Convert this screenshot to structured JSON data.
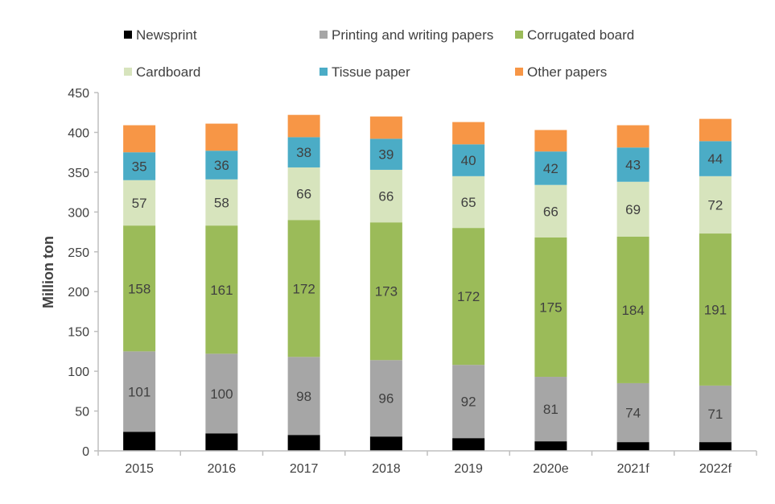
{
  "chart_data": {
    "type": "bar",
    "stacked": true,
    "title": "",
    "xlabel": "",
    "ylabel": "Million ton",
    "ylim": [
      0,
      450
    ],
    "yticks": [
      0,
      50,
      100,
      150,
      200,
      250,
      300,
      350,
      400,
      450
    ],
    "grid": false,
    "legend_position": "top",
    "categories": [
      "2015",
      "2016",
      "2017",
      "2018",
      "2019",
      "2020e",
      "2021f",
      "2022f"
    ],
    "series": [
      {
        "name": "Newsprint",
        "color": "#000000",
        "labeled": false,
        "values": [
          24,
          22,
          20,
          18,
          16,
          12,
          11,
          11
        ]
      },
      {
        "name": "Printing and writing papers",
        "color": "#a6a6a6",
        "labeled": true,
        "values": [
          101,
          100,
          98,
          96,
          92,
          81,
          74,
          71
        ]
      },
      {
        "name": "Corrugated board",
        "color": "#9bbb59",
        "labeled": true,
        "values": [
          158,
          161,
          172,
          173,
          172,
          175,
          184,
          191
        ]
      },
      {
        "name": "Cardboard",
        "color": "#d7e4bd",
        "labeled": true,
        "values": [
          57,
          58,
          66,
          66,
          65,
          66,
          69,
          72
        ]
      },
      {
        "name": "Tissue paper",
        "color": "#4bacc6",
        "labeled": true,
        "values": [
          35,
          36,
          38,
          39,
          40,
          42,
          43,
          44
        ]
      },
      {
        "name": "Other papers",
        "color": "#f79646",
        "labeled": false,
        "values": [
          34,
          34,
          28,
          28,
          28,
          27,
          28,
          28
        ]
      }
    ]
  }
}
